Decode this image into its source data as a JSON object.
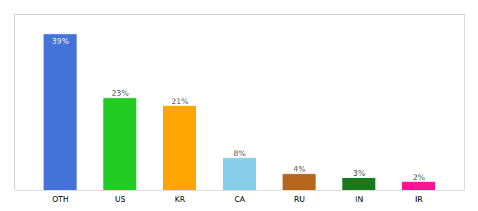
{
  "chart_data": {
    "type": "bar",
    "categories": [
      "OTH",
      "US",
      "KR",
      "CA",
      "RU",
      "IN",
      "IR"
    ],
    "values": [
      39,
      23,
      21,
      8,
      4,
      3,
      2
    ],
    "value_labels": [
      "39%",
      "23%",
      "21%",
      "8%",
      "4%",
      "3%",
      "2%"
    ],
    "colors": [
      "#4472d9",
      "#22cc22",
      "#ffa500",
      "#87ceeb",
      "#b5651d",
      "#1a7a1a",
      "#ff1493"
    ],
    "ylim": [
      0,
      44
    ],
    "data_labels": true,
    "tick_labels": "x"
  }
}
